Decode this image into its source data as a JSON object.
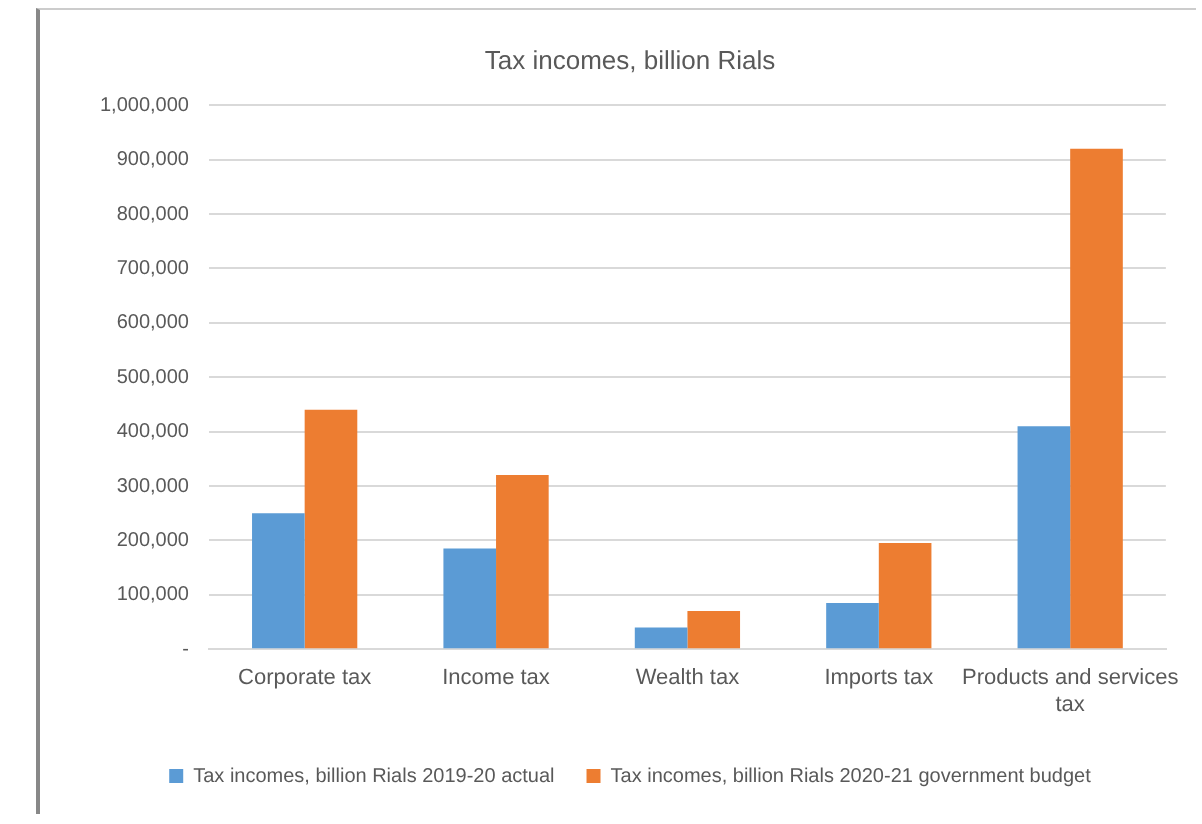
{
  "chart_data": {
    "type": "bar",
    "title": "Tax incomes, billion Rials",
    "categories": [
      "Corporate tax",
      "Income tax",
      "Wealth tax",
      "Imports tax",
      "Products and services tax"
    ],
    "series": [
      {
        "name": "Tax incomes, billion Rials 2019-20 actual",
        "color": "#5b9bd5",
        "values": [
          250000,
          185000,
          40000,
          85000,
          410000
        ]
      },
      {
        "name": "Tax incomes, billion Rials 2020-21 government budget",
        "color": "#ed7d31",
        "values": [
          440000,
          320000,
          70000,
          195000,
          920000
        ]
      }
    ],
    "ylim": [
      0,
      1000000
    ],
    "yticks": [
      {
        "value": 0,
        "label": "-"
      },
      {
        "value": 100000,
        "label": "100,000"
      },
      {
        "value": 200000,
        "label": "200,000"
      },
      {
        "value": 300000,
        "label": "300,000"
      },
      {
        "value": 400000,
        "label": "400,000"
      },
      {
        "value": 500000,
        "label": "500,000"
      },
      {
        "value": 600000,
        "label": "600,000"
      },
      {
        "value": 700000,
        "label": "700,000"
      },
      {
        "value": 800000,
        "label": "800,000"
      },
      {
        "value": 900000,
        "label": "900,000"
      },
      {
        "value": 1000000,
        "label": "1,000,000"
      }
    ],
    "grid": "y",
    "legend": "bottom"
  }
}
